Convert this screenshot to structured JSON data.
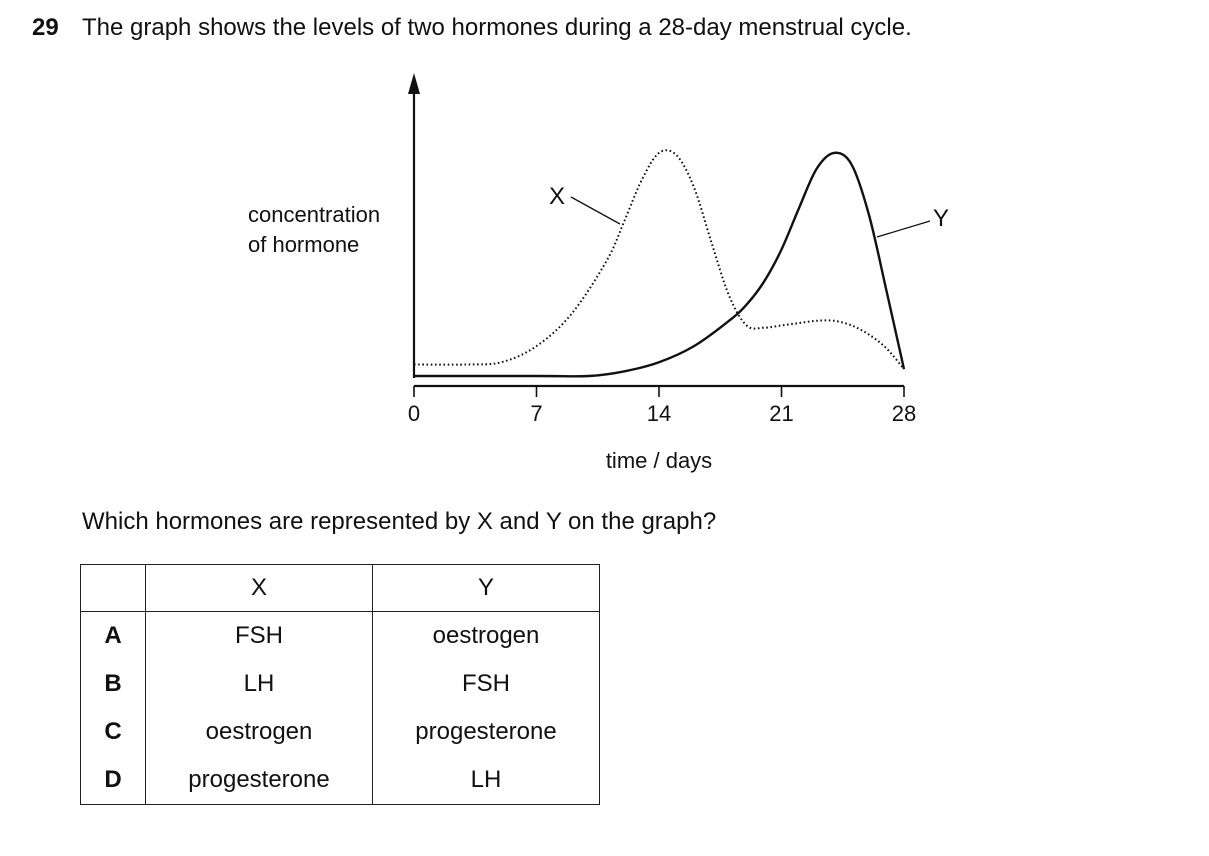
{
  "question": {
    "number": "29",
    "text": "The graph shows the levels of two hormones during a 28-day menstrual cycle.",
    "prompt": "Which hormones are represented by X and Y on the graph?"
  },
  "chart_data": {
    "type": "line",
    "title": "",
    "xlabel": "time / days",
    "ylabel_line1": "concentration",
    "ylabel_line2": "of hormone",
    "x_ticks": [
      "0",
      "7",
      "14",
      "21",
      "28"
    ],
    "xlim": [
      0,
      28
    ],
    "ylim": [
      0,
      1
    ],
    "grid": false,
    "series": [
      {
        "name": "X",
        "style": "dotted",
        "x": [
          0,
          3,
          5,
          7,
          9,
          11,
          12,
          13,
          14,
          15,
          16,
          17,
          18,
          19,
          20,
          21,
          22,
          23,
          24,
          25,
          26,
          27,
          28
        ],
        "y": [
          0.05,
          0.05,
          0.06,
          0.13,
          0.27,
          0.5,
          0.67,
          0.85,
          0.97,
          0.96,
          0.82,
          0.58,
          0.35,
          0.22,
          0.21,
          0.22,
          0.23,
          0.24,
          0.24,
          0.22,
          0.18,
          0.12,
          0.03
        ]
      },
      {
        "name": "Y",
        "style": "solid",
        "x": [
          0,
          7,
          10,
          12,
          14,
          16,
          18,
          19,
          20,
          21,
          22,
          23,
          24,
          25,
          26,
          27,
          28
        ],
        "y": [
          0.0,
          0.0,
          0.0,
          0.02,
          0.06,
          0.13,
          0.24,
          0.31,
          0.41,
          0.55,
          0.73,
          0.9,
          0.97,
          0.92,
          0.7,
          0.37,
          0.03
        ]
      }
    ]
  },
  "table": {
    "headers": [
      "X",
      "Y"
    ],
    "rows": [
      {
        "letter": "A",
        "x": "FSH",
        "y": "oestrogen"
      },
      {
        "letter": "B",
        "x": "LH",
        "y": "FSH"
      },
      {
        "letter": "C",
        "x": "oestrogen",
        "y": "progesterone"
      },
      {
        "letter": "D",
        "x": "progesterone",
        "y": "LH"
      }
    ]
  }
}
